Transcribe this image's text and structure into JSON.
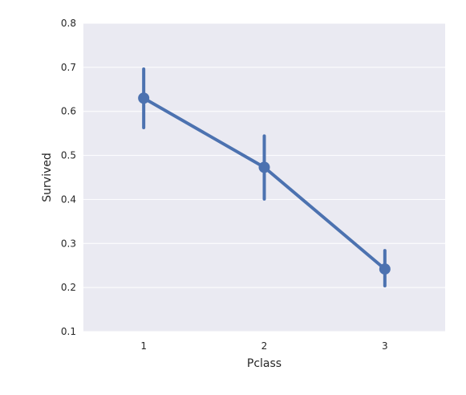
{
  "chart_data": {
    "type": "line",
    "variant": "point-plot-with-error-bars",
    "xlabel": "Pclass",
    "ylabel": "Survived",
    "categories": [
      "1",
      "2",
      "3"
    ],
    "values": [
      0.63,
      0.473,
      0.242
    ],
    "error_bars": [
      {
        "low": 0.563,
        "high": 0.696
      },
      {
        "low": 0.401,
        "high": 0.544
      },
      {
        "low": 0.204,
        "high": 0.284
      }
    ],
    "ylim": [
      0.1,
      0.8
    ],
    "yticks": [
      "0.1",
      "0.2",
      "0.3",
      "0.4",
      "0.5",
      "0.6",
      "0.7",
      "0.8"
    ],
    "grid": true,
    "colors": {
      "series": "#4c72b0",
      "background": "#eaeaf2",
      "grid": "#ffffff",
      "text": "#262626"
    }
  }
}
